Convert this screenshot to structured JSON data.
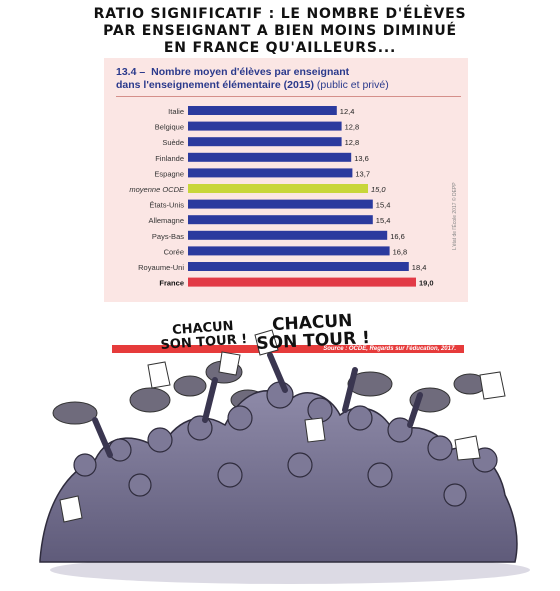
{
  "caption": {
    "line1": "RATIO SIGNIFICATIF : LE NOMBRE D'ÉLÈVES",
    "line2": "PAR ENSEIGNANT A BIEN MOINS DIMINUÉ",
    "line3": "EN FRANCE QU'AILLEURS..."
  },
  "chart_data": {
    "type": "bar",
    "orientation": "horizontal",
    "number": "13.4 –",
    "title_line1": "Nombre moyen d'élèves par enseignant",
    "title_line2": "dans l'enseignement élémentaire (2015)",
    "title_suffix": "(public et privé)",
    "categories": [
      "Italie",
      "Belgique",
      "Suède",
      "Finlande",
      "Espagne",
      "moyenne OCDE",
      "États-Unis",
      "Allemagne",
      "Pays-Bas",
      "Corée",
      "Royaume-Uni",
      "France"
    ],
    "value_labels": [
      "12,4",
      "12,8",
      "12,8",
      "13,6",
      "13,7",
      "15,0",
      "15,4",
      "15,4",
      "16,6",
      "16,8",
      "18,4",
      "19,0"
    ],
    "values": [
      12.4,
      12.8,
      12.8,
      13.6,
      13.7,
      15.0,
      15.4,
      15.4,
      16.6,
      16.8,
      18.4,
      19.0
    ],
    "xlim": [
      0,
      19.0
    ],
    "colors": {
      "default": "#2b3a9e",
      "moyenne OCDE": "#c8d63a",
      "France": "#e23a46"
    },
    "source": "Source : OCDE, Regards sur l'éducation, 2017.",
    "credit": "L'état de l'École 2017 © DEPP",
    "grid": false,
    "legend": "none"
  },
  "bubbles": {
    "left_line1": "CHACUN",
    "left_line2": "SON TOUR !",
    "right_line1": "CHACUN",
    "right_line2": "SON TOUR !"
  }
}
